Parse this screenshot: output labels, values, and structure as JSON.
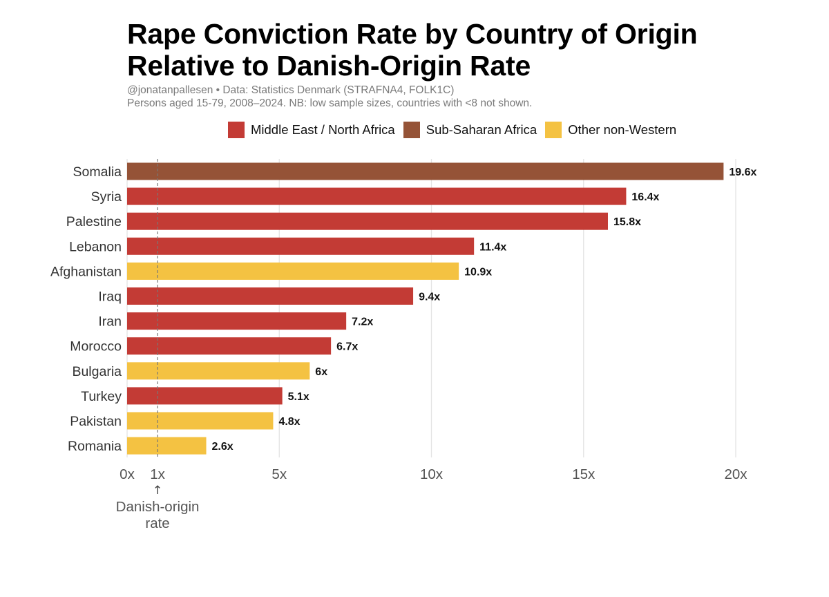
{
  "chart_data": {
    "type": "bar",
    "orientation": "horizontal",
    "title_lines": [
      "Rape Conviction Rate by Country of Origin",
      "Relative to Danish-Origin Rate"
    ],
    "subtitle_lines": [
      "@jonatanpallesen • Data: Statistics Denmark (STRAFNA4, FOLK1C)",
      "Persons aged 15-79, 2008–2024. NB: low sample sizes, countries with <8 not shown."
    ],
    "legend": [
      {
        "name": "Middle East / North Africa",
        "color": "#C33B35"
      },
      {
        "name": "Sub-Saharan Africa",
        "color": "#955337"
      },
      {
        "name": "Other non-Western",
        "color": "#F4C242"
      }
    ],
    "categories": [
      "Somalia",
      "Syria",
      "Palestine",
      "Lebanon",
      "Afghanistan",
      "Iraq",
      "Iran",
      "Morocco",
      "Bulgaria",
      "Turkey",
      "Pakistan",
      "Romania"
    ],
    "values": [
      19.6,
      16.4,
      15.8,
      11.4,
      10.9,
      9.4,
      7.2,
      6.7,
      6,
      5.1,
      4.8,
      2.6
    ],
    "value_labels": [
      "19.6x",
      "16.4x",
      "15.8x",
      "11.4x",
      "10.9x",
      "9.4x",
      "7.2x",
      "6.7x",
      "6x",
      "5.1x",
      "4.8x",
      "2.6x"
    ],
    "groups": [
      1,
      0,
      0,
      0,
      2,
      0,
      0,
      0,
      2,
      0,
      2,
      2
    ],
    "xlim": [
      0,
      20
    ],
    "x_ticks": [
      0,
      5,
      10,
      15,
      20
    ],
    "x_tick_labels": [
      "0x",
      "5x",
      "10x",
      "15x",
      "20x"
    ],
    "reference_line": {
      "value": 1,
      "tick_label": "1x",
      "arrow": "↑",
      "annotation_lines": [
        "Danish-origin",
        "rate"
      ]
    },
    "grid": "vertical"
  }
}
